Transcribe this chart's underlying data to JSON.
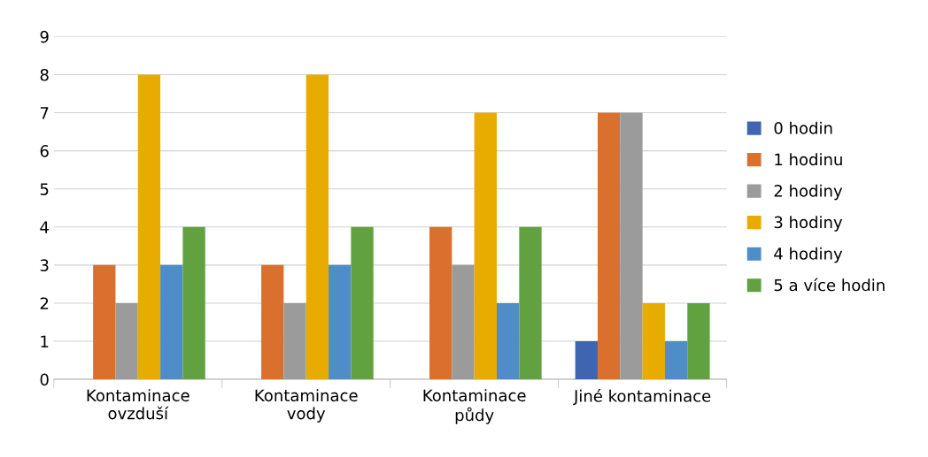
{
  "chart_data": {
    "type": "bar",
    "categories": [
      "Kontaminace\novzduší",
      "Kontaminace\nvody",
      "Kontaminace\npůdy",
      "Jiné kontaminace"
    ],
    "series": [
      {
        "name": "0 hodin",
        "color": "#3f65b0",
        "values": [
          0,
          0,
          0,
          1
        ]
      },
      {
        "name": "1 hodinu",
        "color": "#d9702e",
        "values": [
          3,
          3,
          4,
          7
        ]
      },
      {
        "name": "2 hodiny",
        "color": "#9b9b9b",
        "values": [
          2,
          2,
          3,
          7
        ]
      },
      {
        "name": "3 hodiny",
        "color": "#e8ab00",
        "values": [
          8,
          8,
          7,
          2
        ]
      },
      {
        "name": "4 hodiny",
        "color": "#4f8dc9",
        "values": [
          3,
          3,
          2,
          1
        ]
      },
      {
        "name": "5 a více hodin",
        "color": "#62a13f",
        "values": [
          4,
          4,
          4,
          2
        ]
      }
    ],
    "ylim": [
      0,
      9
    ],
    "yticks": [
      0,
      1,
      2,
      3,
      4,
      5,
      6,
      7,
      8,
      9
    ],
    "grid": "y",
    "legend": "right"
  }
}
